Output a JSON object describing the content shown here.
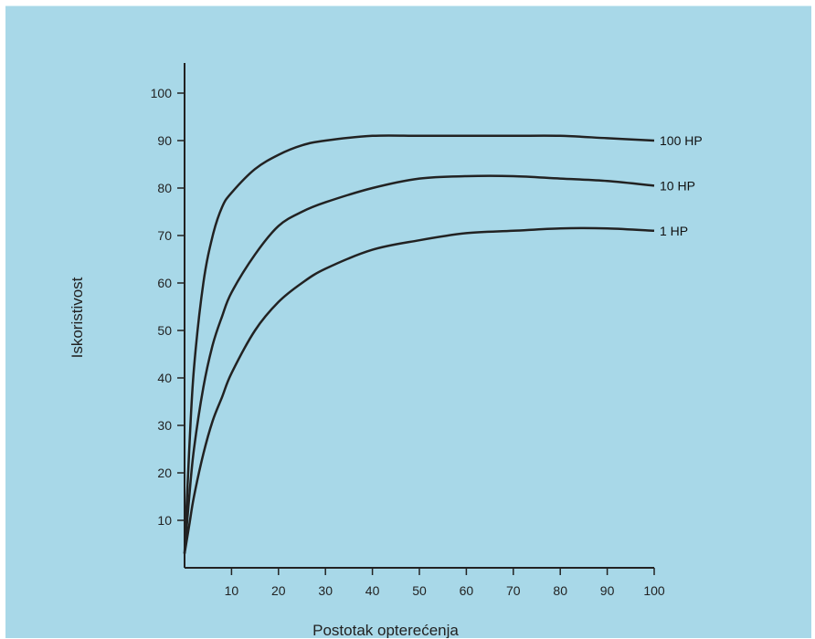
{
  "chart_data": {
    "type": "line",
    "xlabel": "Postotak opterećenja",
    "ylabel": "Iskoristivost",
    "xlim": [
      0,
      100
    ],
    "ylim": [
      0,
      100
    ],
    "xticks": [
      10,
      20,
      30,
      40,
      50,
      60,
      70,
      80,
      90,
      100
    ],
    "yticks": [
      10,
      20,
      30,
      40,
      50,
      60,
      70,
      80,
      90,
      100
    ],
    "grid": false,
    "legend": "none",
    "line_color": "#222222",
    "background_color": "#a8d8e8",
    "series": [
      {
        "name": "100 HP",
        "x": [
          0,
          1,
          2,
          4,
          6,
          8,
          10,
          15,
          20,
          25,
          30,
          40,
          50,
          60,
          70,
          80,
          90,
          100
        ],
        "y": [
          3,
          25,
          42,
          60,
          70,
          76,
          79,
          84,
          87,
          89,
          90,
          91,
          91,
          91,
          91,
          91,
          90.5,
          90
        ]
      },
      {
        "name": "10 HP",
        "x": [
          0,
          1,
          2,
          4,
          6,
          8,
          10,
          15,
          20,
          25,
          30,
          40,
          50,
          60,
          70,
          80,
          90,
          100
        ],
        "y": [
          3,
          15,
          25,
          38,
          47,
          53,
          58,
          66,
          72,
          75,
          77,
          80,
          82,
          82.5,
          82.5,
          82,
          81.5,
          80.5
        ]
      },
      {
        "name": "1 HP",
        "x": [
          0,
          1,
          2,
          4,
          6,
          8,
          10,
          15,
          20,
          25,
          30,
          40,
          50,
          60,
          70,
          80,
          90,
          100
        ],
        "y": [
          3,
          9,
          15,
          24,
          31,
          36,
          41,
          50,
          56,
          60,
          63,
          67,
          69,
          70.5,
          71,
          71.5,
          71.5,
          71
        ]
      }
    ]
  }
}
